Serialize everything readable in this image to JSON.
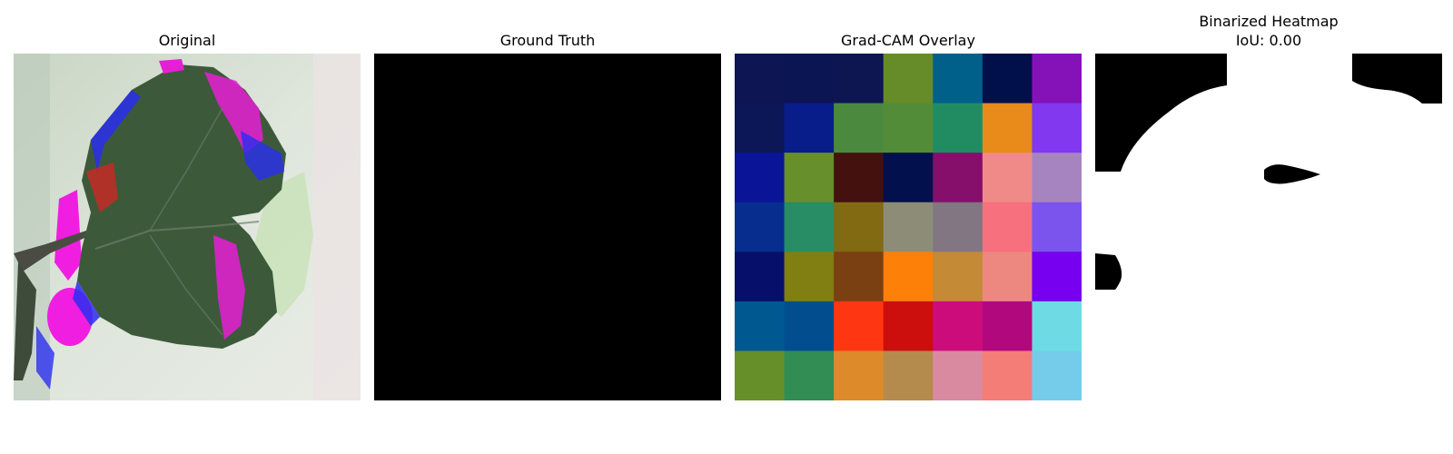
{
  "panels": {
    "original": {
      "title": "Original"
    },
    "ground_truth": {
      "title": "Ground Truth"
    },
    "gradcam": {
      "title": "Grad-CAM Overlay",
      "grid_colors": [
        [
          "#0d1553",
          "#0c1553",
          "#0e1652",
          "#658c28",
          "#00608a",
          "#01104a",
          "#8412b8"
        ],
        [
          "#0c1757",
          "#081c8a",
          "#4b8a3e",
          "#528c38",
          "#218c62",
          "#e88b1a",
          "#8138ee"
        ],
        [
          "#0a1497",
          "#678f2c",
          "#44110f",
          "#03104e",
          "#860f6b",
          "#ef8a88",
          "#a684c0"
        ],
        [
          "#072e8e",
          "#288d64",
          "#826a13",
          "#8d8d77",
          "#827682",
          "#f7707e",
          "#7a54ec"
        ],
        [
          "#06106a",
          "#817e12",
          "#7a4012",
          "#fd8008",
          "#c48a36",
          "#ec8880",
          "#7600ef"
        ],
        [
          "#005891",
          "#014d8e",
          "#fe3712",
          "#cc0e0c",
          "#cd0c7c",
          "#b2087e",
          "#6edae4"
        ],
        [
          "#668f29",
          "#328d54",
          "#dd8a2a",
          "#b48b4c",
          "#d98aa0",
          "#f47d78",
          "#75cbea"
        ]
      ]
    },
    "binarized": {
      "title_line1": "Binarized Heatmap",
      "title_line2": "IoU: 0.00"
    }
  }
}
